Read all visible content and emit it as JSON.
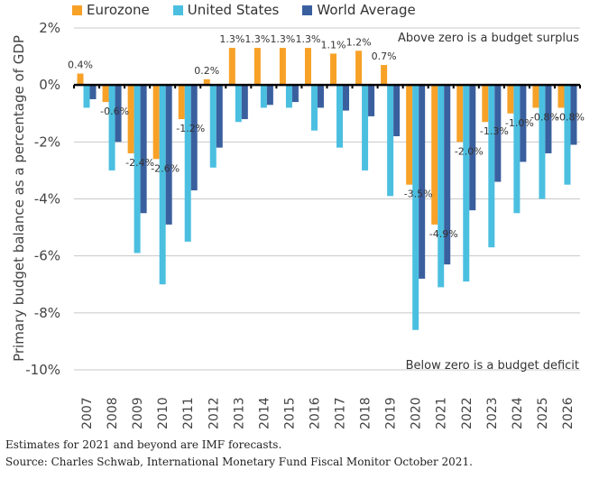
{
  "chart_data": {
    "type": "bar",
    "title": "",
    "xlabel": "",
    "ylabel": "Primary budget balance as a percentage of GDP",
    "ylim": [
      -10,
      2
    ],
    "yticks": [
      2,
      0,
      -2,
      -4,
      -6,
      -8,
      -10
    ],
    "ytick_labels": [
      "2%",
      "0%",
      "-2%",
      "-4%",
      "-6%",
      "-8%",
      "-10%"
    ],
    "grid": true,
    "legend_position": "top-left",
    "categories": [
      "2007",
      "2008",
      "2009",
      "2010",
      "2011",
      "2012",
      "2013",
      "2014",
      "2015",
      "2016",
      "2017",
      "2018",
      "2019",
      "2020",
      "2021",
      "2022",
      "2023",
      "2024",
      "2025",
      "2026"
    ],
    "series": [
      {
        "name": "Eurozone",
        "color": "#F7A127",
        "values": [
          0.4,
          -0.6,
          -2.4,
          -2.6,
          -1.2,
          0.2,
          1.3,
          1.3,
          1.3,
          1.3,
          1.1,
          1.2,
          0.7,
          -3.5,
          -4.9,
          -2.0,
          -1.3,
          -1.0,
          -0.8,
          -0.8
        ],
        "labels": [
          "0.4%",
          "-0.6%",
          "-2.4%",
          "-2.6%",
          "-1.2%",
          "0.2%",
          "1.3%",
          "1.3%",
          "1.3%",
          "1.3%",
          "1.1%",
          "1.2%",
          "0.7%",
          "-3.5%",
          "-4.9%",
          "-2.0%",
          "-1.3%",
          "-1.0%",
          "-0.8%",
          "-0.8%"
        ]
      },
      {
        "name": "United States",
        "color": "#4BBFE0",
        "values": [
          -0.8,
          -3.0,
          -5.9,
          -7.0,
          -5.5,
          -2.9,
          -1.3,
          -0.8,
          -0.8,
          -1.6,
          -2.2,
          -3.0,
          -3.9,
          -8.6,
          -7.1,
          -6.9,
          -5.7,
          -4.5,
          -4.0,
          -3.5
        ]
      },
      {
        "name": "World Average",
        "color": "#3A5F9E",
        "values": [
          -0.5,
          -2.0,
          -4.5,
          -4.9,
          -3.7,
          -2.2,
          -1.2,
          -0.7,
          -0.6,
          -0.8,
          -0.9,
          -1.1,
          -1.8,
          -6.8,
          -6.3,
          -4.4,
          -3.4,
          -2.7,
          -2.4,
          -2.1
        ]
      }
    ],
    "annotations": [
      "Above zero is a budget surplus",
      "Below zero is a budget deficit"
    ]
  },
  "footer": {
    "note": "Estimates for 2021 and beyond are IMF forecasts.",
    "source": "Source: Charles Schwab, International Monetary Fund Fiscal Monitor October 2021."
  }
}
